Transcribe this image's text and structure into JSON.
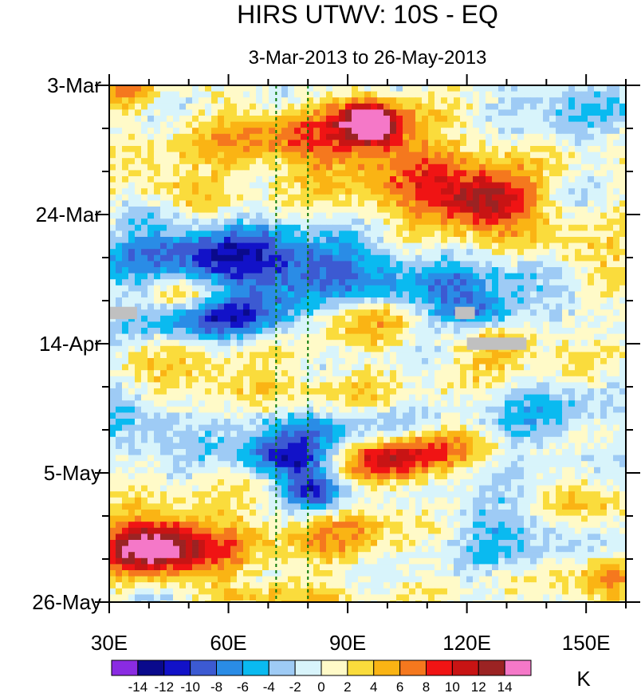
{
  "chart_data": {
    "type": "heatmap",
    "title": "HIRS UTWV: 10S - EQ",
    "subtitle": "3-Mar-2013 to 26-May-2013",
    "units": "K",
    "x_ticks": [
      {
        "value": 30,
        "label": "30E"
      },
      {
        "value": 60,
        "label": "60E"
      },
      {
        "value": 90,
        "label": "90E"
      },
      {
        "value": 120,
        "label": "120E"
      },
      {
        "value": 150,
        "label": "150E"
      }
    ],
    "xlim": [
      30,
      160
    ],
    "y_ticks": [
      {
        "value": 0,
        "label": "3-Mar"
      },
      {
        "value": 21,
        "label": "24-Mar"
      },
      {
        "value": 42,
        "label": "14-Apr"
      },
      {
        "value": 63,
        "label": "5-May"
      },
      {
        "value": 84,
        "label": "26-May"
      }
    ],
    "ylim": [
      0,
      84
    ],
    "reference_lines_lon": [
      72,
      80
    ],
    "colorbar": {
      "levels": [
        -16,
        -14,
        -12,
        -10,
        -8,
        -6,
        -4,
        -2,
        0,
        2,
        4,
        6,
        8,
        10,
        12,
        14,
        16
      ],
      "labels": [
        "-14",
        "-12",
        "-10",
        "-8",
        "-6",
        "-4",
        "-2",
        "0",
        "2",
        "4",
        "6",
        "8",
        "10",
        "12",
        "14"
      ],
      "colors": [
        "#8a2be2",
        "#0a0a8c",
        "#1212c8",
        "#3c5ad2",
        "#2a8ce6",
        "#0abaf0",
        "#9ecbf5",
        "#d8f4fb",
        "#fffac8",
        "#fadc3c",
        "#fab414",
        "#f5781e",
        "#f01414",
        "#c81414",
        "#9b2323",
        "#f578c8"
      ]
    },
    "features": [
      {
        "lon": 96,
        "day": 6,
        "amp": 16,
        "slon": 5,
        "sday": 2.5
      },
      {
        "lon": 80,
        "day": 9,
        "amp": 7,
        "slon": 20,
        "sday": 4
      },
      {
        "lon": 112,
        "day": 13,
        "amp": 4,
        "slon": 16,
        "sday": 4
      },
      {
        "lon": 125,
        "day": 19,
        "amp": 11,
        "slon": 9,
        "sday": 3
      },
      {
        "lon": 110,
        "day": 20,
        "amp": 4,
        "slon": 15,
        "sday": 4
      },
      {
        "lon": 45,
        "day": 17,
        "amp": 4,
        "slon": 10,
        "sday": 3
      },
      {
        "lon": 40,
        "day": 21,
        "amp": -4,
        "slon": 8,
        "sday": 2
      },
      {
        "lon": 73,
        "day": 30,
        "amp": -9,
        "slon": 25,
        "sday": 4
      },
      {
        "lon": 55,
        "day": 27,
        "amp": -5,
        "slon": 18,
        "sday": 3
      },
      {
        "lon": 125,
        "day": 33,
        "amp": -4,
        "slon": 20,
        "sday": 3
      },
      {
        "lon": 50,
        "day": 34,
        "amp": 6,
        "slon": 7,
        "sday": 2
      },
      {
        "lon": 60,
        "day": 38,
        "amp": -9,
        "slon": 14,
        "sday": 2.5
      },
      {
        "lon": 122,
        "day": 37,
        "amp": -8,
        "slon": 8,
        "sday": 2
      },
      {
        "lon": 92,
        "day": 38,
        "amp": 5,
        "slon": 10,
        "sday": 3
      },
      {
        "lon": 130,
        "day": 42,
        "amp": 5,
        "slon": 10,
        "sday": 3
      },
      {
        "lon": 55,
        "day": 48,
        "amp": 4,
        "slon": 12,
        "sday": 3
      },
      {
        "lon": 85,
        "day": 50,
        "amp": 3,
        "slon": 12,
        "sday": 3
      },
      {
        "lon": 80,
        "day": 56,
        "amp": -6,
        "slon": 18,
        "sday": 3
      },
      {
        "lon": 75,
        "day": 61,
        "amp": -9,
        "slon": 8,
        "sday": 2
      },
      {
        "lon": 82,
        "day": 66,
        "amp": -12,
        "slon": 6,
        "sday": 2.5
      },
      {
        "lon": 100,
        "day": 61,
        "amp": 11,
        "slon": 9,
        "sday": 2.5
      },
      {
        "lon": 112,
        "day": 58,
        "amp": 6,
        "slon": 8,
        "sday": 2
      },
      {
        "lon": 40,
        "day": 75,
        "amp": 16,
        "slon": 9,
        "sday": 3
      },
      {
        "lon": 55,
        "day": 74,
        "amp": 5,
        "slon": 12,
        "sday": 4
      },
      {
        "lon": 90,
        "day": 72,
        "amp": 5,
        "slon": 12,
        "sday": 4
      },
      {
        "lon": 130,
        "day": 72,
        "amp": -4,
        "slon": 15,
        "sday": 4
      },
      {
        "lon": 150,
        "day": 69,
        "amp": 4,
        "slon": 8,
        "sday": 3
      },
      {
        "lon": 155,
        "day": 81,
        "amp": 6,
        "slon": 6,
        "sday": 3
      },
      {
        "lon": 70,
        "day": 83,
        "amp": 5,
        "slon": 12,
        "sday": 2
      },
      {
        "lon": 35,
        "day": 1,
        "amp": 5,
        "slon": 6,
        "sday": 2
      },
      {
        "lon": 145,
        "day": 3,
        "amp": -4,
        "slon": 12,
        "sday": 3
      },
      {
        "lon": 140,
        "day": 54,
        "amp": -4,
        "slon": 10,
        "sday": 4
      },
      {
        "lon": 35,
        "day": 55,
        "amp": -5,
        "slon": 8,
        "sday": 3
      },
      {
        "lon": 150,
        "day": 28,
        "amp": 4,
        "slon": 10,
        "sday": 3
      }
    ],
    "missing_data": [
      {
        "lon0": 30,
        "lon1": 37,
        "day0": 36,
        "day1": 38
      },
      {
        "lon0": 117,
        "lon1": 122,
        "day0": 36,
        "day1": 38
      },
      {
        "lon0": 120,
        "lon1": 135,
        "day0": 41,
        "day1": 43
      }
    ]
  }
}
